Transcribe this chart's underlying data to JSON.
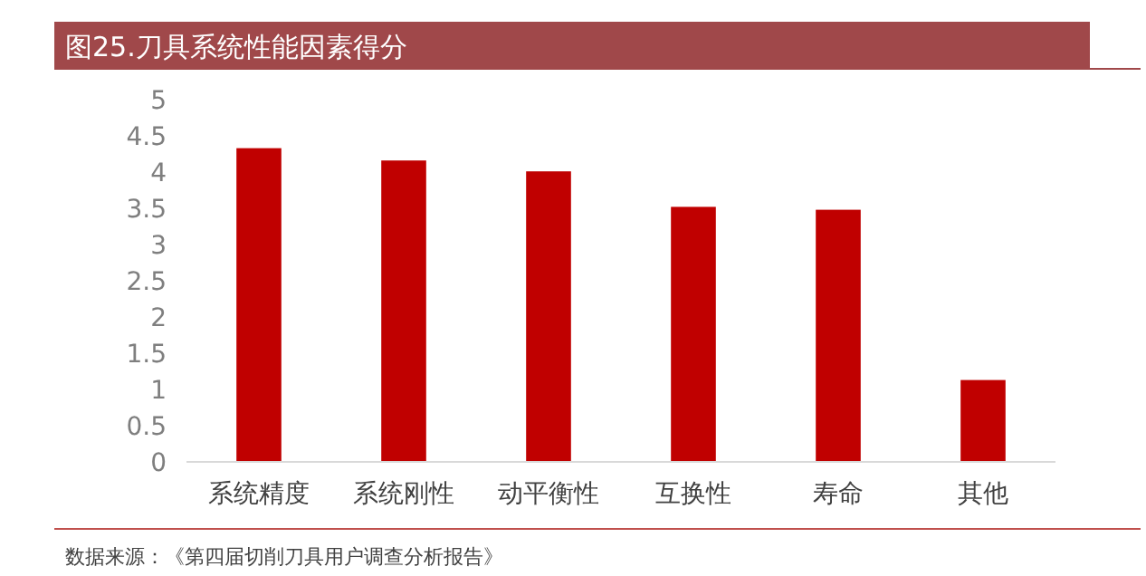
{
  "chart_data": {
    "type": "bar",
    "title": "图25.刀具系统性能因素得分",
    "categories": [
      "系统精度",
      "系统刚性",
      "动平衡性",
      "互换性",
      "寿命",
      "其他"
    ],
    "values": [
      4.33,
      4.16,
      4.01,
      3.52,
      3.48,
      1.13
    ],
    "color": "#c00000",
    "ylim": [
      0,
      5
    ],
    "yticks": [
      0,
      0.5,
      1,
      1.5,
      2,
      2.5,
      3,
      3.5,
      4,
      4.5,
      5
    ],
    "grid": false,
    "annotations": [
      "数据来源：《第四届切削刀具用户调查分析报告》"
    ]
  }
}
